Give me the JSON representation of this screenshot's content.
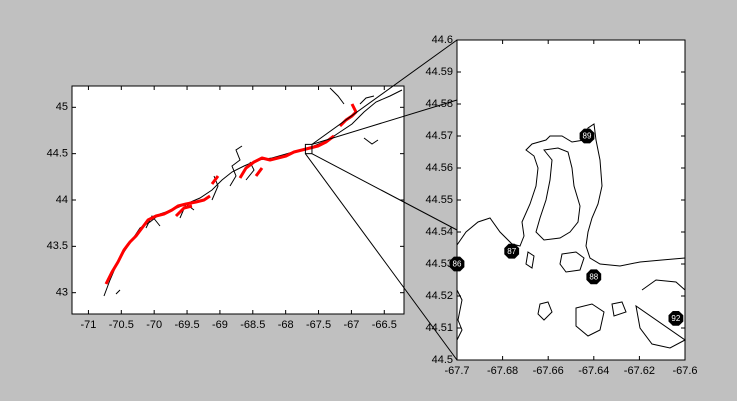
{
  "chart_data": [
    {
      "type": "map",
      "xlim": [
        -71.25,
        -66.2
      ],
      "ylim": [
        42.77,
        45.23
      ],
      "xticks": [
        -71,
        -70.5,
        -70,
        -69.5,
        -69,
        -68.5,
        -68,
        -67.5,
        -67,
        -66.5
      ],
      "yticks": [
        43,
        43.5,
        44,
        44.5,
        45
      ]
    },
    {
      "type": "map",
      "xlim": [
        -67.7,
        -67.6
      ],
      "ylim": [
        44.5,
        44.6
      ],
      "xticks": [
        -67.7,
        -67.68,
        -67.66,
        -67.64,
        -67.62,
        -67.6
      ],
      "yticks": [
        44.5,
        44.51,
        44.52,
        44.53,
        44.54,
        44.55,
        44.56,
        44.57,
        44.58,
        44.59,
        44.6
      ],
      "markers": [
        {
          "label": "86",
          "x": -67.7,
          "y": 44.53
        },
        {
          "label": "87",
          "x": -67.676,
          "y": 44.534
        },
        {
          "label": "88",
          "x": -67.64,
          "y": 44.526
        },
        {
          "label": "89",
          "x": -67.643,
          "y": 44.57
        },
        {
          "label": "92",
          "x": -67.604,
          "y": 44.513
        }
      ]
    }
  ]
}
